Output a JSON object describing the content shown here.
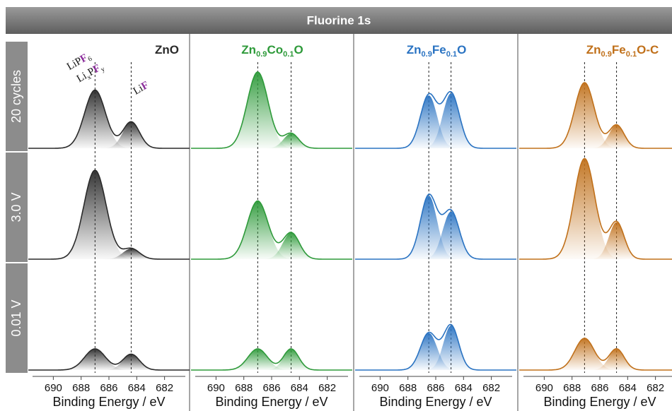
{
  "chart_data": {
    "type": "spectra",
    "title": "Fluorine 1s",
    "xlabel": "Binding Energy / eV",
    "xlim": [
      691.8,
      680.2
    ],
    "xticks": [
      690,
      688,
      686,
      684,
      682
    ],
    "ylim": [
      0,
      1
    ],
    "rows": [
      "20 cycles",
      "3.0 V",
      "0.01 V"
    ],
    "annotations": [
      "LiPF6",
      "LixPFy",
      "LiF"
    ],
    "panels": [
      {
        "name": "ZnO",
        "color": "#2a2a2a",
        "reference_lines": [
          687.0,
          684.4
        ],
        "spectra": [
          [
            {
              "center": 687.0,
              "height": 0.55,
              "width": 0.75
            },
            {
              "center": 684.4,
              "height": 0.25,
              "width": 0.6
            }
          ],
          [
            {
              "center": 687.0,
              "height": 0.84,
              "width": 0.8
            },
            {
              "center": 684.4,
              "height": 0.1,
              "width": 0.6
            }
          ],
          [
            {
              "center": 687.0,
              "height": 0.2,
              "width": 0.75
            },
            {
              "center": 684.4,
              "height": 0.15,
              "width": 0.6
            }
          ]
        ]
      },
      {
        "name": "Zn0.9Co0.1O",
        "color": "#2e9a3a",
        "reference_lines": [
          687.0,
          684.6
        ],
        "spectra": [
          [
            {
              "center": 687.0,
              "height": 0.72,
              "width": 0.75
            },
            {
              "center": 684.6,
              "height": 0.14,
              "width": 0.55
            }
          ],
          [
            {
              "center": 687.0,
              "height": 0.55,
              "width": 0.75
            },
            {
              "center": 684.6,
              "height": 0.25,
              "width": 0.6
            }
          ],
          [
            {
              "center": 687.0,
              "height": 0.2,
              "width": 0.7
            },
            {
              "center": 684.6,
              "height": 0.2,
              "width": 0.55
            }
          ]
        ]
      },
      {
        "name": "Zn0.9Fe0.1O",
        "color": "#2a73c2",
        "reference_lines": [
          686.5,
          684.9
        ],
        "spectra": [
          [
            {
              "center": 686.5,
              "height": 0.5,
              "width": 0.6
            },
            {
              "center": 684.9,
              "height": 0.52,
              "width": 0.6
            }
          ],
          [
            {
              "center": 686.5,
              "height": 0.6,
              "width": 0.6
            },
            {
              "center": 684.9,
              "height": 0.45,
              "width": 0.6
            }
          ],
          [
            {
              "center": 686.5,
              "height": 0.35,
              "width": 0.6
            },
            {
              "center": 684.9,
              "height": 0.42,
              "width": 0.55
            }
          ]
        ]
      },
      {
        "name": "Zn0.9Fe0.1O-C",
        "color": "#c0701a",
        "reference_lines": [
          687.1,
          684.8
        ],
        "spectra": [
          [
            {
              "center": 687.1,
              "height": 0.62,
              "width": 0.7
            },
            {
              "center": 684.8,
              "height": 0.22,
              "width": 0.55
            }
          ],
          [
            {
              "center": 687.1,
              "height": 0.95,
              "width": 0.75
            },
            {
              "center": 684.8,
              "height": 0.35,
              "width": 0.55
            }
          ],
          [
            {
              "center": 687.1,
              "height": 0.3,
              "width": 0.7
            },
            {
              "center": 684.8,
              "height": 0.2,
              "width": 0.55
            }
          ]
        ]
      }
    ]
  }
}
